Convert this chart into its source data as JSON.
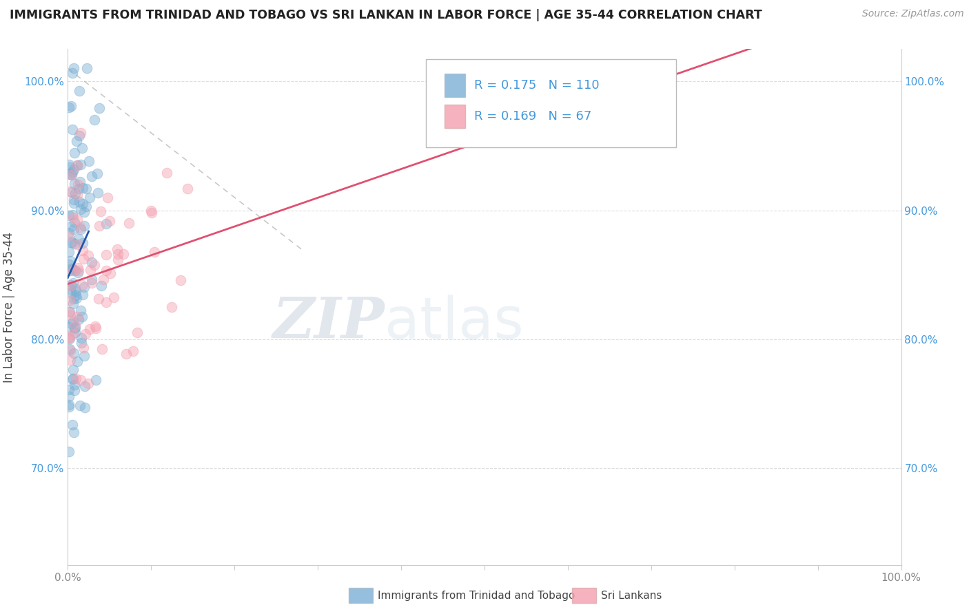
{
  "title": "IMMIGRANTS FROM TRINIDAD AND TOBAGO VS SRI LANKAN IN LABOR FORCE | AGE 35-44 CORRELATION CHART",
  "source": "Source: ZipAtlas.com",
  "ylabel": "In Labor Force | Age 35-44",
  "xlim": [
    0.0,
    1.0
  ],
  "ylim": [
    0.625,
    1.025
  ],
  "yticks": [
    0.7,
    0.8,
    0.9,
    1.0
  ],
  "xticks": [
    0.0,
    0.1,
    0.2,
    0.3,
    0.4,
    0.5,
    0.6,
    0.7,
    0.8,
    0.9,
    1.0
  ],
  "xtick_labels_show": [
    "0.0%",
    "",
    "",
    "",
    "",
    "",
    "",
    "",
    "",
    "",
    "100.0%"
  ],
  "ytick_labels": [
    "70.0%",
    "80.0%",
    "90.0%",
    "100.0%"
  ],
  "legend_label1": "Immigrants from Trinidad and Tobago",
  "legend_label2": "Sri Lankans",
  "R1": 0.175,
  "N1": 110,
  "R2": 0.169,
  "N2": 67,
  "blue_color": "#7BAFD4",
  "pink_color": "#F4A0B0",
  "blue_line_color": "#2255AA",
  "pink_line_color": "#E05070",
  "watermark_zip": "ZIP",
  "watermark_atlas": "atlas",
  "axis_color": "#CCCCCC",
  "grid_color": "#DDDDDD",
  "tick_color_x": "#888888",
  "tick_color_y": "#4499DD"
}
